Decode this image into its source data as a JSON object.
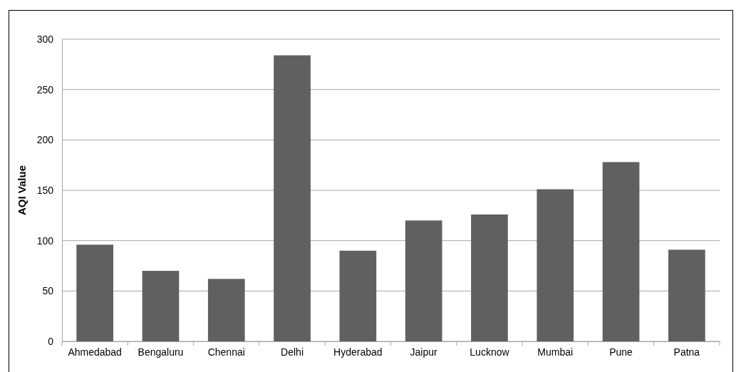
{
  "chart_data": {
    "type": "bar",
    "ylabel": "AQI Value",
    "categories": [
      "Ahmedabad",
      "Bengaluru",
      "Chennai",
      "Delhi",
      "Hyderabad",
      "Jaipur",
      "Lucknow",
      "Mumbai",
      "Pune",
      "Patna"
    ],
    "values": [
      96,
      70,
      62,
      284,
      90,
      120,
      126,
      151,
      178,
      91
    ],
    "color": "#606060",
    "ylim": [
      0,
      300
    ],
    "yticks": [
      0,
      50,
      100,
      150,
      200,
      250,
      300
    ],
    "grid": "y"
  }
}
